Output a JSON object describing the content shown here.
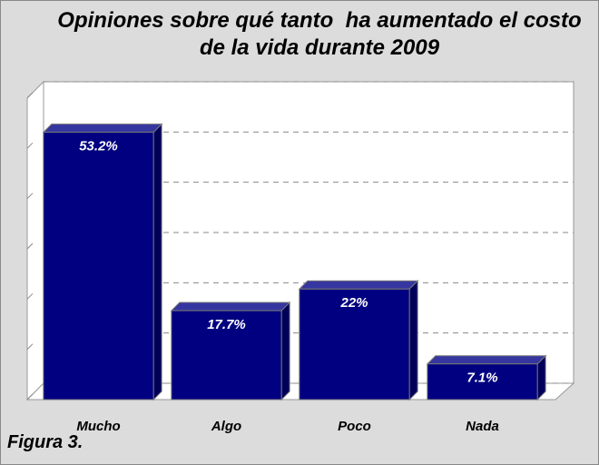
{
  "chart_data": {
    "type": "bar3d",
    "title": "Opiniones sobre qué tanto  ha aumentado el costo de la vida durante 2009",
    "categories": [
      "Mucho",
      "Algo",
      "Poco",
      "Nada"
    ],
    "values": [
      53.2,
      17.7,
      22,
      7.1
    ],
    "value_labels": [
      "53.2%",
      "17.7%",
      "22%",
      "7.1%"
    ],
    "color": "#000080",
    "ylim": [
      0,
      60
    ],
    "yticks": [
      0,
      10,
      20,
      30,
      40,
      50,
      60
    ],
    "grid": true,
    "caption": "Figura 3."
  }
}
